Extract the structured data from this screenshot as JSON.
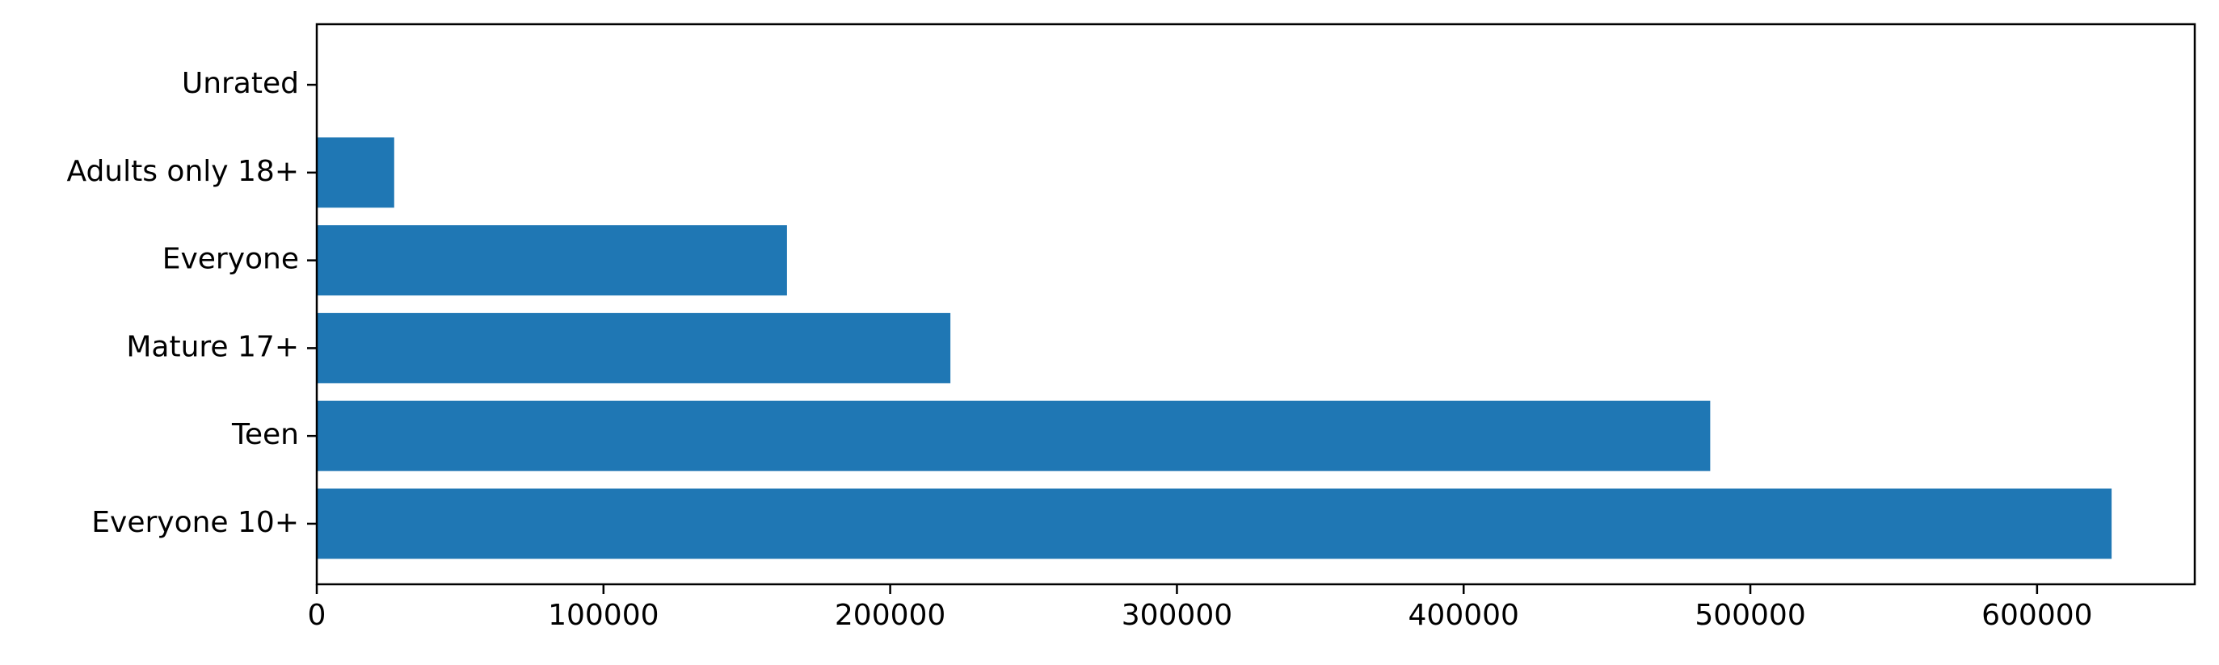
{
  "chart_data": {
    "type": "bar",
    "orientation": "horizontal",
    "categories": [
      "Everyone 10+",
      "Teen",
      "Mature 17+",
      "Everyone",
      "Adults only 18+",
      "Unrated"
    ],
    "values": [
      626000,
      486000,
      221000,
      164000,
      27000,
      0
    ],
    "xlim": [
      0,
      655000
    ],
    "xticks": [
      0,
      100000,
      200000,
      300000,
      400000,
      500000,
      600000
    ],
    "xtick_labels": [
      "0",
      "100000",
      "200000",
      "300000",
      "400000",
      "500000",
      "600000"
    ],
    "title": "",
    "xlabel": "",
    "ylabel": "",
    "grid": false,
    "legend": "none",
    "bar_color": "#1f77b4"
  }
}
